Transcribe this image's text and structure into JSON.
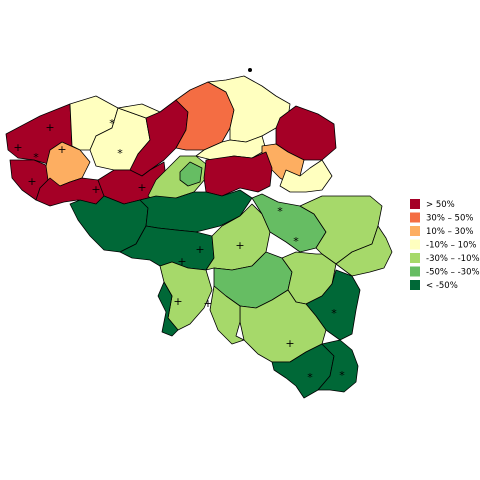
{
  "colors": {
    "gt50": "#a50026",
    "c30_50": "#f46d43",
    "c10_30": "#fdae61",
    "c_10_10": "#ffffbf",
    "c_30_10": "#a6d96a",
    "c_50_30": "#66bd63",
    "lt_50": "#006837"
  },
  "legend": {
    "items": [
      {
        "key": "gt50",
        "label": "> 50%"
      },
      {
        "key": "c30_50",
        "label": "30%  –  50%"
      },
      {
        "key": "c10_30",
        "label": "10%  –  30%"
      },
      {
        "key": "c_10_10",
        "label": "-10%  –  10%"
      },
      {
        "key": "c_30_10",
        "label": "-30%  – -10%"
      },
      {
        "key": "c_50_30",
        "label": "-50%  – -30%"
      },
      {
        "key": "lt_50",
        "label": "< -50%"
      }
    ]
  },
  "markers": {
    "plus": "+",
    "star": "*"
  }
}
